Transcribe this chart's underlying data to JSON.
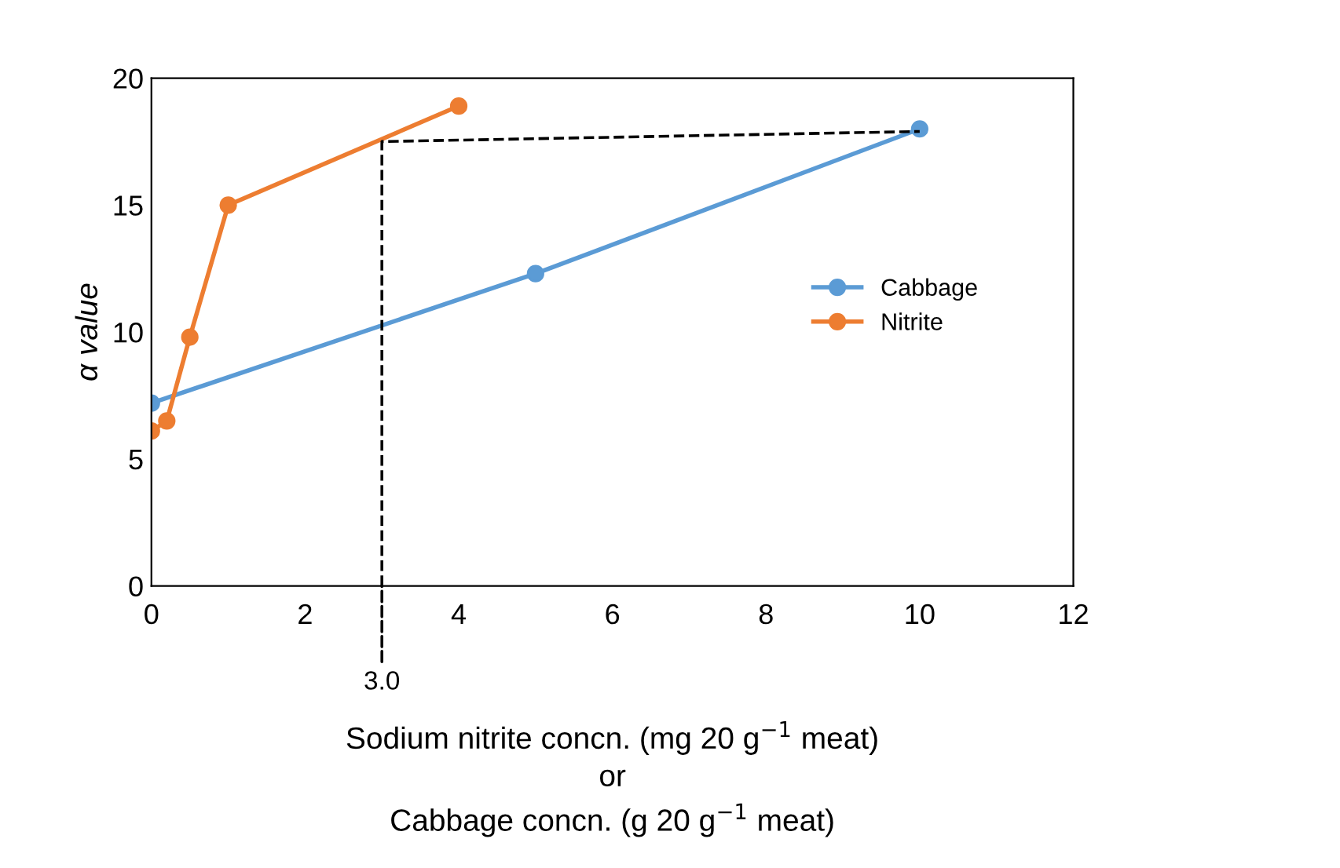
{
  "chart_data": {
    "type": "line",
    "xlabel": "Sodium nitrite concn. (mg 20 g$^{−1}$ meat)\nor\nCabbage concn. (g 20 g$^{−1}$ meat)",
    "ylabel": "α value",
    "series": [
      {
        "name": "Cabbage",
        "color": "#5b9bd5",
        "x": [
          0,
          5,
          10
        ],
        "values": [
          7.2,
          12.3,
          18.0
        ]
      },
      {
        "name": "Nitrite",
        "color": "#ed7d31",
        "x": [
          0,
          0.2,
          0.5,
          1,
          4
        ],
        "values": [
          6.1,
          6.5,
          9.8,
          15.0,
          18.9
        ]
      },
      {
        "color": "#000000",
        "x": [
          3,
          3,
          10
        ],
        "values": [
          0,
          17.5,
          17.9
        ],
        "marker": "none",
        "line_style": "dashed"
      }
    ],
    "annotations": [
      {
        "text": "3.0",
        "x": 3,
        "y": 0
      }
    ],
    "xlim": [
      0,
      12
    ],
    "xticks": [
      0,
      2,
      4,
      6,
      8,
      10,
      12
    ],
    "ylim": [
      0,
      20
    ],
    "yticks": [
      0,
      5,
      10,
      15,
      20
    ],
    "marker": "circle",
    "line_style": "solid",
    "grid": false,
    "legend": "right"
  }
}
